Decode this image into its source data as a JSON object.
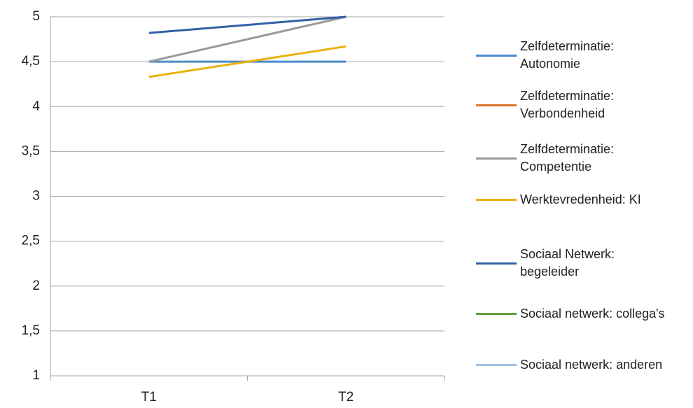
{
  "chart_data": {
    "type": "line",
    "categories": [
      "T1",
      "T2"
    ],
    "series": [
      {
        "name": "Zelfdeterminatie: Autonomie",
        "color": "#4a8ccb",
        "values": [
          4.5,
          4.5
        ]
      },
      {
        "name": "Zelfdeterminatie: Verbondenheid",
        "color": "#e0702a",
        "values": [
          null,
          null
        ]
      },
      {
        "name": "Zelfdeterminatie: Competentie",
        "color": "#999999",
        "values": [
          4.5,
          5
        ]
      },
      {
        "name": "Werktevredenheid: KI",
        "color": "#e8b10a",
        "values": [
          4.33,
          4.67
        ]
      },
      {
        "name": "Sociaal Netwerk: begeleider",
        "color": "#3460a8",
        "values": [
          4.82,
          5
        ]
      },
      {
        "name": "Sociaal netwerk: collega's",
        "color": "#62a03f",
        "values": [
          null,
          null
        ]
      },
      {
        "name": "Sociaal netwerk: anderen",
        "color": "#9cc2e6",
        "values": [
          null,
          null
        ]
      }
    ],
    "ylim": [
      1,
      5
    ],
    "yticks": [
      1,
      {
        "value": 1.5,
        "label": "1,5"
      },
      2,
      {
        "value": 2.5,
        "label": "2,5"
      },
      3,
      {
        "value": 3.5,
        "label": "3,5"
      },
      4,
      {
        "value": 4.5,
        "label": "4,5"
      },
      5
    ],
    "grid": true,
    "legend": "right"
  }
}
